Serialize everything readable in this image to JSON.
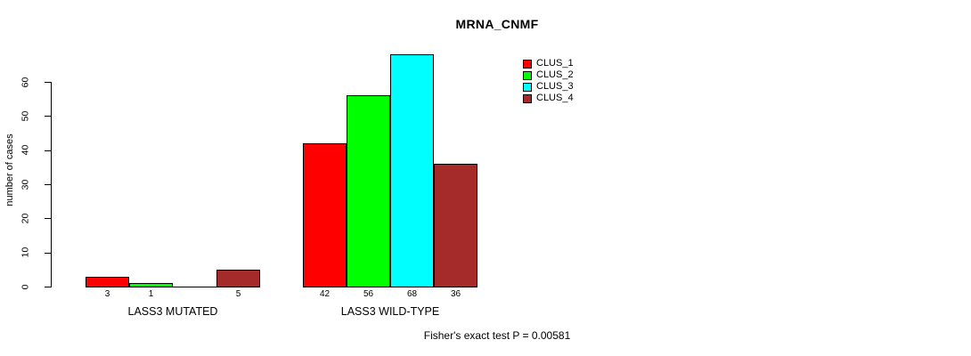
{
  "chart_data": {
    "type": "bar",
    "title": "MRNA_CNMF",
    "ylabel": "number of cases",
    "ylim": [
      0,
      60
    ],
    "yticks": [
      0,
      10,
      20,
      30,
      40,
      50,
      60
    ],
    "grid": false,
    "legend_position": "top-right",
    "categories": [
      "LASS3 MUTATED",
      "LASS3 WILD-TYPE"
    ],
    "series": [
      {
        "name": "CLUS_1",
        "color": "#FF0000",
        "values": [
          3,
          42
        ]
      },
      {
        "name": "CLUS_2",
        "color": "#00FF00",
        "values": [
          1,
          56
        ]
      },
      {
        "name": "CLUS_3",
        "color": "#00FFFF",
        "values": [
          0,
          68
        ]
      },
      {
        "name": "CLUS_4",
        "color": "#A52A2A",
        "values": [
          5,
          36
        ]
      }
    ],
    "bar_labels": [
      [
        "3",
        "1",
        "",
        "5"
      ],
      [
        "42",
        "56",
        "68",
        "36"
      ]
    ],
    "annotation": "Fisher's exact test P = 0.00581",
    "axis_color": "#000000",
    "background_color": "#FFFFFF"
  }
}
